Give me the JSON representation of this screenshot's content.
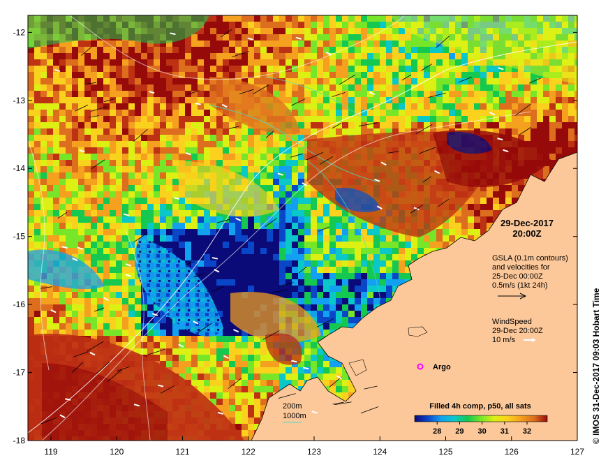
{
  "map": {
    "lon_ticks": [
      "119",
      "120",
      "121",
      "122",
      "123",
      "124",
      "125",
      "126",
      "127"
    ],
    "lat_ticks": [
      "-12",
      "-13",
      "-14",
      "-15",
      "-16",
      "-17",
      "-18"
    ],
    "lon_range": [
      118.65,
      127.0
    ],
    "lat_range": [
      -11.75,
      -18.0
    ],
    "colors": {
      "land": "#FCC89A",
      "palette": [
        "#0A0A78",
        "#0A46C8",
        "#14A0F0",
        "#0AC8C8",
        "#14C850",
        "#78E628",
        "#DCF014",
        "#FAD21E",
        "#F5A01E",
        "#DC6E1E",
        "#BE3214",
        "#960A0A"
      ]
    }
  },
  "annotations": {
    "date": "29-Dec-2017",
    "time": "20:00Z",
    "gsla_lines": [
      "GSLA (0.1m contours)",
      "and velocities for",
      "25-Dec 00:00Z",
      "0.5m/s (1kt 24h)"
    ],
    "wind_lines": [
      "WindSpeed",
      "29-Dec 20:00Z",
      "10 m/s"
    ],
    "argo_label": "Argo",
    "contour_200": "200m",
    "contour_1000": "1000m",
    "credit": "© IMOS 31-Dec-2017 09:03 Hobart Time"
  },
  "colorbar": {
    "title": "Filled 4h comp, p50, all sats",
    "ticks": [
      "28",
      "29",
      "30",
      "31",
      "32"
    ],
    "range": [
      27.0,
      32.9
    ]
  }
}
